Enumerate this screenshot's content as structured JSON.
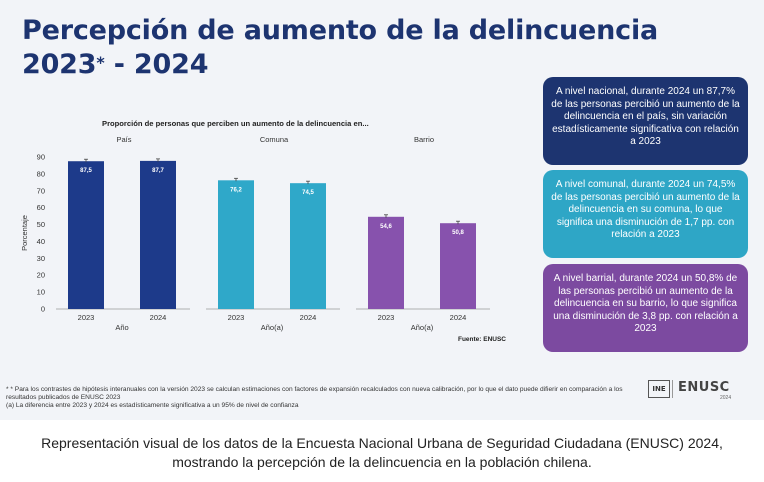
{
  "slide": {
    "title_line1": "Percepción de aumento de la delincuencia",
    "title_line2_pre": "2023",
    "title_line2_sup": "*",
    "title_line2_post": " - 2024"
  },
  "chart_data": {
    "type": "bar",
    "title": "Proporción de personas que perciben un aumento de la delincuencia en...",
    "ylabel": "Porcentaje",
    "ylim": [
      0,
      90
    ],
    "yticks": [
      0,
      10,
      20,
      30,
      40,
      50,
      60,
      70,
      80,
      90
    ],
    "source": "Fuente: ENUSC",
    "groups": [
      {
        "name": "País",
        "xlabel": "Año",
        "categories": [
          "2023",
          "2024"
        ],
        "values": [
          87.5,
          87.7
        ],
        "labels": [
          "87,5",
          "87,7"
        ],
        "color": "#1d3a8a"
      },
      {
        "name": "Comuna",
        "xlabel": "Año(a)",
        "categories": [
          "2023",
          "2024"
        ],
        "values": [
          76.2,
          74.5
        ],
        "labels": [
          "76,2",
          "74,5"
        ],
        "color": "#2fa8c9"
      },
      {
        "name": "Barrio",
        "xlabel": "Año(a)",
        "categories": [
          "2023",
          "2024"
        ],
        "values": [
          54.6,
          50.8
        ],
        "labels": [
          "54,6",
          "50,8"
        ],
        "color": "#8752ad"
      }
    ]
  },
  "boxes": [
    {
      "text": "A nivel nacional, durante 2024 un 87,7% de las personas percibió un aumento de la delincuencia en el país, sin variación estadísticamente significativa con relación a 2023",
      "color": "#1d3470"
    },
    {
      "text": "A nivel comunal, durante 2024 un 74,5% de las personas percibió un aumento de la delincuencia en su comuna, lo que significa una disminución de 1,7 pp. con relación a 2023",
      "color": "#2ea6c6"
    },
    {
      "text": "A nivel barrial, durante 2024 un 50,8% de las personas percibió un aumento de la delincuencia en su barrio, lo que significa una disminución de 3,8 pp. con relación a 2023",
      "color": "#7c4aa0"
    }
  ],
  "footnotes": {
    "line1": "* * Para los contrastes de hipótesis interanuales con la versión 2023 se calculan estimaciones con factores de expansión recalculados con nueva calibración, por lo que el dato puede difierir en comparación a los resultados publicados de ENUSC 2023",
    "line2": "(a) La diferencia entre 2023 y 2024 es estadísticamente significativa a un 95% de nivel de confianza"
  },
  "logos": {
    "ine": "INE",
    "enusc": "ENUSC",
    "enusc_year": "2024"
  },
  "caption": "Representación visual de los datos de la Encuesta Nacional Urbana de Seguridad Ciudadana (ENUSC) 2024, mostrando la percepción de la delincuencia en la población chilena."
}
